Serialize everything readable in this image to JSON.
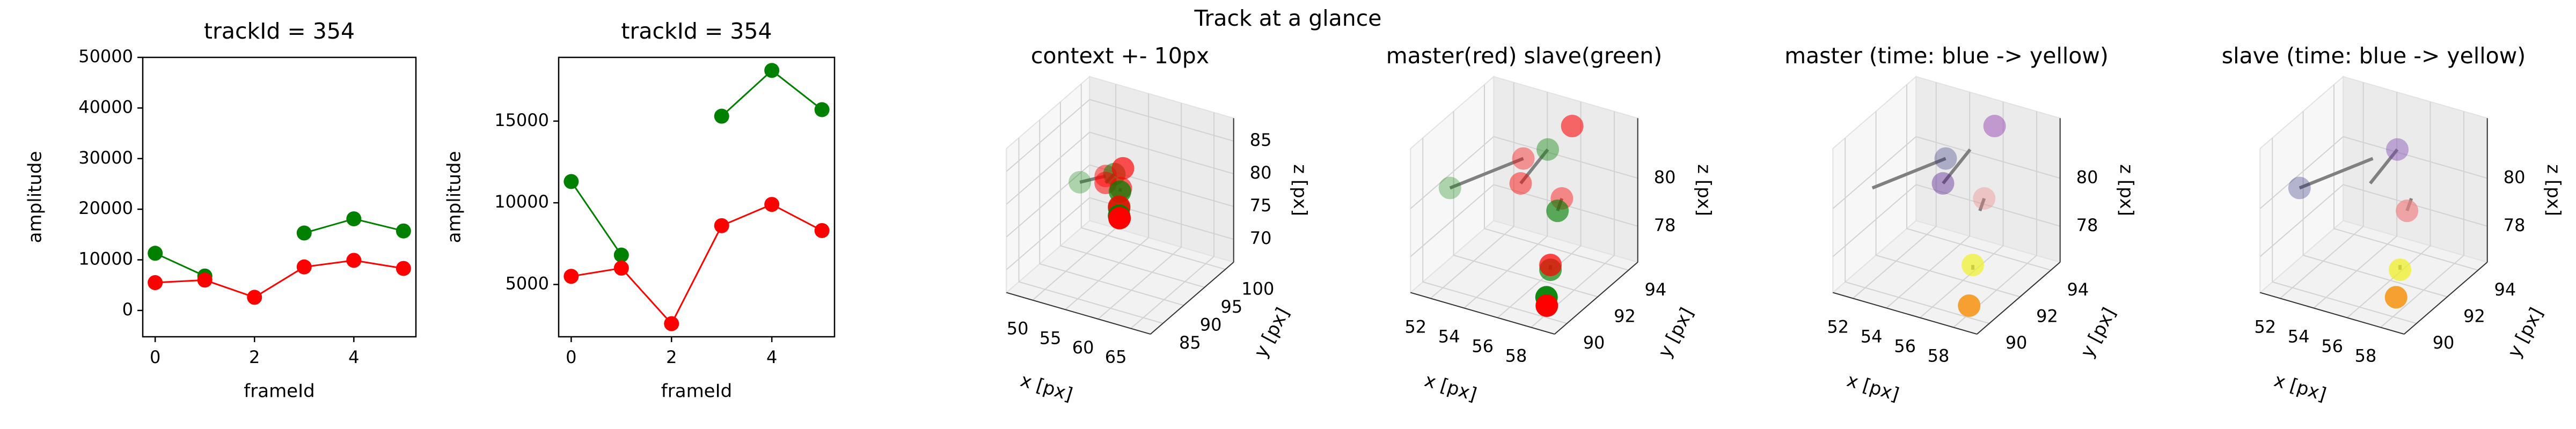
{
  "title": "Track at a glance",
  "chart_data": [
    {
      "type": "line",
      "title": "trackId = 354",
      "xlabel": "frameId",
      "ylabel": "amplitude",
      "x": [
        0,
        1,
        2,
        3,
        4,
        5
      ],
      "series": [
        {
          "color": "green",
          "values": [
            11300,
            6800,
            null,
            15300,
            18100,
            15700
          ]
        },
        {
          "color": "red",
          "values": [
            5500,
            6000,
            2600,
            8600,
            9900,
            8300
          ]
        }
      ],
      "xlim": [
        -0.25,
        5.25
      ],
      "xticks": [
        0,
        2,
        4
      ],
      "ylim": [
        -5200,
        50000
      ],
      "yticks": [
        0,
        10000,
        20000,
        30000,
        40000,
        50000
      ]
    },
    {
      "type": "line",
      "title": "trackId = 354",
      "xlabel": "frameId",
      "ylabel": "amplitude",
      "x": [
        0,
        1,
        2,
        3,
        4,
        5
      ],
      "series": [
        {
          "color": "green",
          "values": [
            11300,
            6800,
            null,
            15300,
            18100,
            15700
          ]
        },
        {
          "color": "red",
          "values": [
            5500,
            6000,
            2600,
            8600,
            9900,
            8300
          ]
        }
      ],
      "xlim": [
        -0.25,
        5.25
      ],
      "xticks": [
        0,
        2,
        4
      ],
      "ylim": [
        1800,
        18900
      ],
      "yticks": [
        5000,
        10000,
        15000
      ]
    },
    {
      "type": "scatter3d",
      "title": "context +- 10px",
      "xlabel": "x [px]",
      "ylabel": "y [px]",
      "zlabel": "z [px]",
      "xlim": [
        46,
        68
      ],
      "ylim": [
        82,
        102
      ],
      "zlim": [
        66.5,
        88.5
      ],
      "xticks": [
        50,
        55,
        60,
        65
      ],
      "yticks": [
        85,
        90,
        95,
        100
      ],
      "zticks": [
        70,
        75,
        80,
        85
      ],
      "links": true,
      "link_color": "gray",
      "series": [
        {
          "color": "red",
          "markers": true,
          "x": [
            54.5,
            54.8,
            56.5,
            56.8,
            57.5,
            58.2
          ],
          "y": [
            92.5,
            92.0,
            93.5,
            92.5,
            91.0,
            90.0
          ],
          "z": [
            81.0,
            80.3,
            82.2,
            79.8,
            78.0,
            77.0
          ]
        },
        {
          "color": "green",
          "markers": true,
          "x": [
            51.5,
            55.5,
            null,
            57.0,
            57.5,
            58.0
          ],
          "y": [
            91.0,
            93.0,
            null,
            92.0,
            91.0,
            90.2
          ],
          "z": [
            80.0,
            81.3,
            null,
            79.6,
            77.8,
            77.2
          ]
        }
      ]
    },
    {
      "type": "scatter3d",
      "title": "master(red) slave(green)",
      "xlabel": "x [px]",
      "ylabel": "y [px]",
      "zlabel": "z [px]",
      "xlim": [
        50.8,
        59.4
      ],
      "ylim": [
        89.2,
        94.6
      ],
      "zlim": [
        76.5,
        82.5
      ],
      "xticks": [
        52,
        54,
        56,
        58
      ],
      "yticks": [
        90,
        92,
        94
      ],
      "zticks": [
        78,
        80
      ],
      "links": true,
      "link_color": "gray",
      "series": [
        {
          "color": "red",
          "markers": true,
          "x": [
            54.5,
            54.8,
            56.5,
            56.8,
            57.5,
            58.2
          ],
          "y": [
            92.5,
            92.0,
            93.5,
            92.5,
            91.0,
            90.0
          ],
          "z": [
            81.0,
            80.3,
            82.2,
            79.8,
            78.0,
            77.0
          ]
        },
        {
          "color": "green",
          "markers": true,
          "x": [
            51.5,
            55.5,
            null,
            57.0,
            57.5,
            58.0
          ],
          "y": [
            91.0,
            93.0,
            null,
            92.0,
            91.0,
            90.2
          ],
          "z": [
            80.0,
            81.3,
            null,
            79.6,
            77.8,
            77.2
          ]
        }
      ]
    },
    {
      "type": "scatter3d",
      "title": "master (time: blue -> yellow)",
      "xlabel": "x [px]",
      "ylabel": "y [px]",
      "zlabel": "z [px]",
      "xlim": [
        50.8,
        59.4
      ],
      "ylim": [
        89.2,
        94.6
      ],
      "zlim": [
        76.5,
        82.5
      ],
      "xticks": [
        52,
        54,
        56,
        58
      ],
      "yticks": [
        90,
        92,
        94
      ],
      "zticks": [
        78,
        80
      ],
      "links": true,
      "link_color": "gray",
      "series": [
        {
          "colors": [
            "#191970",
            "#4b0c8c",
            "#9b4fb4",
            "#f08080",
            "#f0f020",
            "#f5a030"
          ],
          "markers": true,
          "x": [
            54.5,
            54.8,
            56.5,
            56.8,
            57.5,
            58.2
          ],
          "y": [
            92.5,
            92.0,
            93.5,
            92.5,
            91.0,
            90.0
          ],
          "z": [
            81.0,
            80.3,
            82.2,
            79.8,
            78.0,
            77.0
          ]
        },
        {
          "colors": [
            "#191970",
            "#7a3fb0",
            null,
            "#f08080",
            "#f0f020",
            "#f5a030"
          ],
          "markers": false,
          "x": [
            51.5,
            55.5,
            null,
            57.0,
            57.5,
            58.0
          ],
          "y": [
            91.0,
            93.0,
            null,
            92.0,
            91.0,
            90.2
          ],
          "z": [
            80.0,
            81.3,
            null,
            79.6,
            77.8,
            77.2
          ]
        }
      ]
    },
    {
      "type": "scatter3d",
      "title": "slave (time: blue -> yellow)",
      "xlabel": "x [px]",
      "ylabel": "y [px]",
      "zlabel": "z [px]",
      "xlim": [
        50.8,
        59.4
      ],
      "ylim": [
        89.2,
        94.6
      ],
      "zlim": [
        76.5,
        82.5
      ],
      "xticks": [
        52,
        54,
        56,
        58
      ],
      "yticks": [
        90,
        92,
        94
      ],
      "zticks": [
        78,
        80
      ],
      "links": true,
      "link_color": "gray",
      "series": [
        {
          "colors": [
            "#191970",
            "#4b0c8c",
            "#9b4fb4",
            "#f08080",
            "#f0f020",
            "#f5a030"
          ],
          "markers": false,
          "x": [
            54.5,
            54.8,
            56.5,
            56.8,
            57.5,
            58.2
          ],
          "y": [
            92.5,
            92.0,
            93.5,
            92.5,
            91.0,
            90.0
          ],
          "z": [
            81.0,
            80.3,
            82.2,
            79.8,
            78.0,
            77.0
          ]
        },
        {
          "colors": [
            "#191970",
            "#7a3fb0",
            null,
            "#f08080",
            "#f0f020",
            "#f5a030"
          ],
          "markers": true,
          "x": [
            51.5,
            55.5,
            null,
            57.0,
            57.5,
            58.0
          ],
          "y": [
            91.0,
            93.0,
            null,
            92.0,
            91.0,
            90.2
          ],
          "z": [
            80.0,
            81.3,
            null,
            79.6,
            77.8,
            77.2
          ]
        }
      ]
    }
  ]
}
